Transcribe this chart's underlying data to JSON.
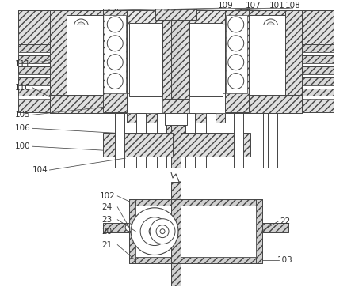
{
  "bg_color": "#ffffff",
  "lc": "#555555",
  "lc_dark": "#333333",
  "figsize": [
    4.43,
    3.63
  ],
  "dpi": 100
}
